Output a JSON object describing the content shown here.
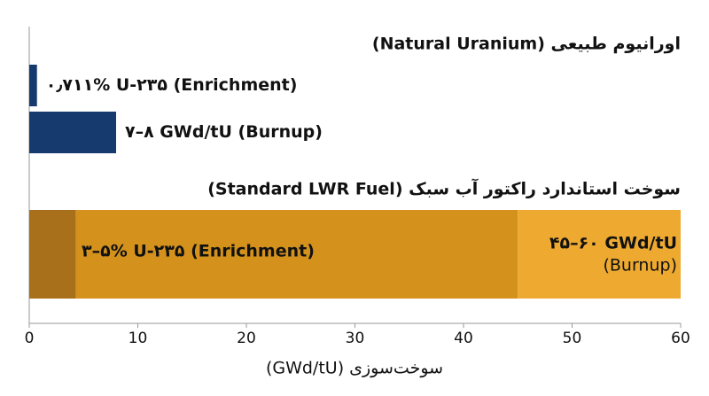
{
  "chart_data": {
    "type": "bar",
    "orientation": "horizontal",
    "xlabel": "سوخت‌سوزی (GWd/tU)",
    "xlim": [
      0,
      60
    ],
    "xticks": [
      0,
      10,
      20,
      30,
      40,
      50,
      60
    ],
    "groups": [
      {
        "title": "اورانیوم طبیعی (Natural Uranium)",
        "bars": [
          {
            "segments": [
              {
                "value": 0.711,
                "color": "#163a6e"
              }
            ],
            "labels": [
              "۰٫۷۱۱% U-۲۳۵ (Enrichment)"
            ]
          },
          {
            "segments": [
              {
                "value": 8,
                "color": "#163a6e"
              }
            ],
            "labels": [
              "۷–۸ GWd/tU (Burnup)"
            ]
          }
        ]
      },
      {
        "title": "سوخت استاندارد راکتور آب سبک (Standard LWR Fuel)",
        "bars": [
          {
            "segments": [
              {
                "value": 4.3,
                "color": "#a8701a"
              },
              {
                "value": 40.7,
                "color": "#d4921c"
              },
              {
                "value": 15,
                "color": "#eeaa30"
              }
            ],
            "labels": [
              "۳–۵% U-۲۳۵ (Enrichment)",
              "۴۵–۶۰ GWd/tU",
              "(Burnup)"
            ]
          }
        ]
      }
    ]
  }
}
